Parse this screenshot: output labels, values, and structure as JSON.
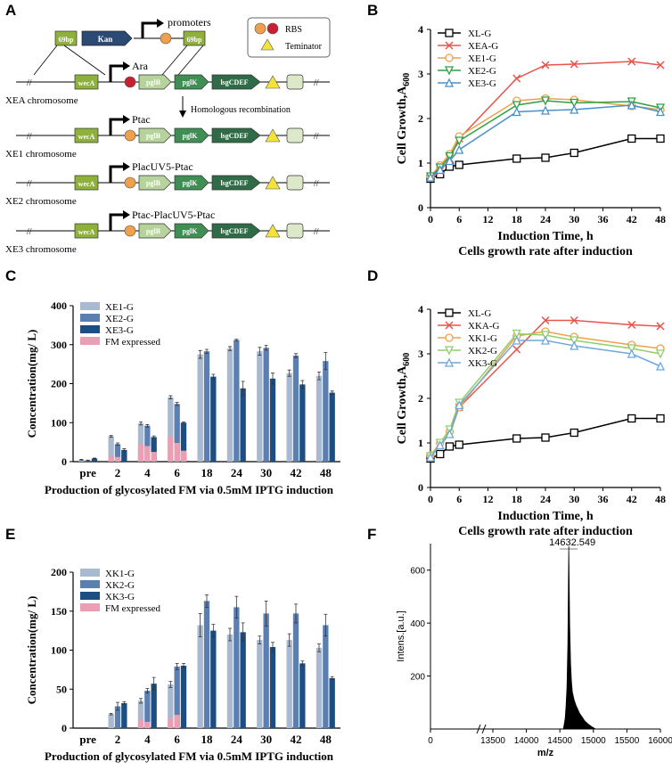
{
  "panel_letters": [
    "A",
    "B",
    "C",
    "D",
    "E",
    "F"
  ],
  "diagram": {
    "promoters_label": "promoters",
    "ara_label": "Ara",
    "legend_rbs": "RBS",
    "legend_terminator": "Teminator",
    "kan": "Kan",
    "homology": "69bp",
    "homologous_recombination": "Homologous recombination",
    "genes": {
      "wecA": "wecA",
      "pglB": "pglB",
      "pglK": "pglK",
      "lsgCDEF": "lsgCDEF"
    },
    "rows": [
      {
        "label": "XEA chromosome",
        "promoter": "Ara"
      },
      {
        "label": "XE1 chromosome",
        "promoter": "Ptac"
      },
      {
        "label": "XE2 chromosome",
        "promoter": "PlacUV5-Ptac"
      },
      {
        "label": "XE3 chromosome",
        "promoter": "Ptac-PlacUV5-Ptac"
      }
    ],
    "colors": {
      "wecA": "#8db13a",
      "pglB": "#b5d39b",
      "pglK": "#3f8f55",
      "lsgCDEF": "#2f6b46",
      "kan": "#2c4a73",
      "rbs_orange": "#f0a04b",
      "rbs_red": "#c8202f",
      "terminator": "#f2e33a",
      "box_end": "#dde8c8"
    }
  },
  "chart_data": [
    {
      "id": "B",
      "type": "line",
      "xlabel": "Induction Time, h",
      "ylabel": "Cell Growth,A",
      "ylabel_sub": "600",
      "caption": "Cells growth rate after induction",
      "x": [
        0,
        2,
        4,
        6,
        18,
        24,
        30,
        42,
        48
      ],
      "xticks": [
        "0",
        "6",
        "12",
        "18",
        "24",
        "30",
        "36",
        "42",
        "48"
      ],
      "xlim": [
        0,
        48
      ],
      "yticks": [
        "0",
        "1",
        "2",
        "3",
        "4"
      ],
      "ylim": [
        0,
        4
      ],
      "series": [
        {
          "name": "XL-G",
          "color": "#000000",
          "marker": "square",
          "values": [
            0.65,
            0.75,
            0.92,
            0.96,
            1.1,
            1.12,
            1.23,
            1.55,
            1.55
          ]
        },
        {
          "name": "XEA-G",
          "color": "#e8534a",
          "marker": "x",
          "values": [
            0.68,
            0.82,
            1.1,
            1.55,
            2.9,
            3.2,
            3.22,
            3.28,
            3.2
          ]
        },
        {
          "name": "XE1-G",
          "color": "#f0a04b",
          "marker": "circle",
          "values": [
            0.7,
            0.95,
            1.2,
            1.6,
            2.4,
            2.45,
            2.42,
            2.28,
            2.2
          ]
        },
        {
          "name": "XE2-G",
          "color": "#2ea043",
          "marker": "triangle-down",
          "values": [
            0.7,
            0.9,
            1.15,
            1.5,
            2.3,
            2.4,
            2.35,
            2.38,
            2.24
          ]
        },
        {
          "name": "XE3-G",
          "color": "#4a90c8",
          "marker": "triangle-up",
          "values": [
            0.68,
            0.85,
            1.05,
            1.3,
            2.15,
            2.18,
            2.2,
            2.3,
            2.15
          ]
        }
      ]
    },
    {
      "id": "C",
      "type": "bar",
      "ylabel": "Concentration(mg/ L)",
      "caption": "Production of glycosylated FM via 0.5mM IPTG induction",
      "categories": [
        "pre",
        "2",
        "4",
        "6",
        "18",
        "24",
        "30",
        "42",
        "48"
      ],
      "yticks": [
        "0",
        "100",
        "200",
        "300",
        "400"
      ],
      "ylim": [
        0,
        400
      ],
      "series": [
        {
          "name": "XE1-G",
          "color": "#a9b9d0",
          "values": [
            5,
            65,
            98,
            165,
            275,
            290,
            283,
            227,
            220
          ],
          "errors": [
            1,
            2,
            4,
            4,
            10,
            5,
            10,
            8,
            10
          ]
        },
        {
          "name": "XE2-G",
          "color": "#5b7fb1",
          "values": [
            3,
            45,
            92,
            148,
            283,
            312,
            292,
            272,
            258
          ],
          "errors": [
            1,
            3,
            3,
            4,
            5,
            2,
            6,
            5,
            22
          ]
        },
        {
          "name": "XE3-G",
          "color": "#1c4e82",
          "values": [
            8,
            30,
            63,
            100,
            218,
            188,
            213,
            198,
            177
          ],
          "errors": [
            1,
            3,
            3,
            2,
            6,
            18,
            14,
            10,
            4
          ]
        }
      ],
      "fm_expressed": {
        "name": "FM expressed",
        "color": "#eaa0b4",
        "values": [
          0,
          15,
          45,
          65,
          0,
          0,
          0,
          0,
          0
        ],
        "values2": [
          0,
          12,
          40,
          48,
          0,
          0,
          0,
          0,
          0
        ],
        "values3": [
          0,
          0,
          25,
          28,
          0,
          0,
          0,
          0,
          0
        ]
      }
    },
    {
      "id": "D",
      "type": "line",
      "xlabel": "Induction Time, h",
      "ylabel": "Cell Growth,A",
      "ylabel_sub": "600",
      "caption": "Cells growth rate after induction",
      "x": [
        0,
        2,
        4,
        6,
        18,
        24,
        30,
        42,
        48
      ],
      "xticks": [
        "0",
        "6",
        "12",
        "18",
        "24",
        "30",
        "36",
        "42",
        "48"
      ],
      "xlim": [
        0,
        48
      ],
      "yticks": [
        "0",
        "1",
        "2",
        "3",
        "4"
      ],
      "ylim": [
        0,
        4
      ],
      "series": [
        {
          "name": "XL-G",
          "color": "#000000",
          "marker": "square",
          "values": [
            0.65,
            0.75,
            0.92,
            0.96,
            1.1,
            1.12,
            1.23,
            1.55,
            1.55
          ]
        },
        {
          "name": "XKA-G",
          "color": "#e8534a",
          "marker": "x",
          "values": [
            0.7,
            0.95,
            1.2,
            1.8,
            3.1,
            3.75,
            3.75,
            3.65,
            3.62
          ]
        },
        {
          "name": "XK1-G",
          "color": "#f0a04b",
          "marker": "circle",
          "values": [
            0.72,
            1.0,
            1.25,
            1.8,
            3.4,
            3.5,
            3.38,
            3.2,
            3.12
          ]
        },
        {
          "name": "XK2-G",
          "color": "#8fcf6a",
          "marker": "triangle-down",
          "values": [
            0.7,
            1.0,
            1.3,
            1.9,
            3.45,
            3.42,
            3.3,
            3.12,
            3.0
          ]
        },
        {
          "name": "XK3-G",
          "color": "#6fa8dc",
          "marker": "triangle-up",
          "values": [
            0.68,
            0.95,
            1.2,
            1.85,
            3.3,
            3.3,
            3.18,
            3.0,
            2.72
          ]
        }
      ]
    },
    {
      "id": "E",
      "type": "bar",
      "ylabel": "Concentration(mg/ L)",
      "caption": "Production of glycosylated FM via 0.5mM IPTG induction",
      "categories": [
        "pre",
        "2",
        "4",
        "6",
        "18",
        "24",
        "30",
        "42",
        "48"
      ],
      "yticks": [
        "0",
        "50",
        "100",
        "150",
        "200"
      ],
      "ylim": [
        0,
        200
      ],
      "series": [
        {
          "name": "XK1-G",
          "color": "#a9b9d0",
          "values": [
            0,
            18,
            35,
            56,
            132,
            120,
            113,
            113,
            103
          ],
          "errors": [
            0,
            1,
            3,
            4,
            15,
            8,
            5,
            8,
            5
          ]
        },
        {
          "name": "XK2-G",
          "color": "#5b7fb1",
          "values": [
            0,
            28,
            48,
            79,
            163,
            155,
            147,
            147,
            132
          ],
          "errors": [
            0,
            5,
            3,
            4,
            8,
            14,
            16,
            12,
            14
          ]
        },
        {
          "name": "XK3-G",
          "color": "#1c4e82",
          "values": [
            0,
            32,
            57,
            80,
            125,
            123,
            104,
            83,
            64
          ],
          "errors": [
            0,
            2,
            8,
            3,
            8,
            12,
            6,
            3,
            2
          ]
        }
      ],
      "fm_expressed": {
        "name": "FM expressed",
        "color": "#eaa0b4",
        "values": [
          0,
          0,
          12,
          13,
          0,
          0,
          0,
          0,
          0
        ],
        "values2": [
          0,
          0,
          8,
          17,
          0,
          0,
          0,
          0,
          0
        ],
        "values3": [
          0,
          0,
          0,
          0,
          0,
          0,
          0,
          0,
          0
        ]
      }
    },
    {
      "id": "F",
      "type": "line",
      "peak_label": "14632.549",
      "xlabel": "m/z",
      "ylabel": "Intens.[a.u.]",
      "xticks": [
        "0",
        "13500",
        "14000",
        "14500",
        "15000",
        "15500",
        "16000"
      ],
      "yticks": [
        "200",
        "400",
        "600"
      ],
      "ylim": [
        0,
        700
      ],
      "peak_mz": 14632.5,
      "peak_intensity": 690
    }
  ]
}
